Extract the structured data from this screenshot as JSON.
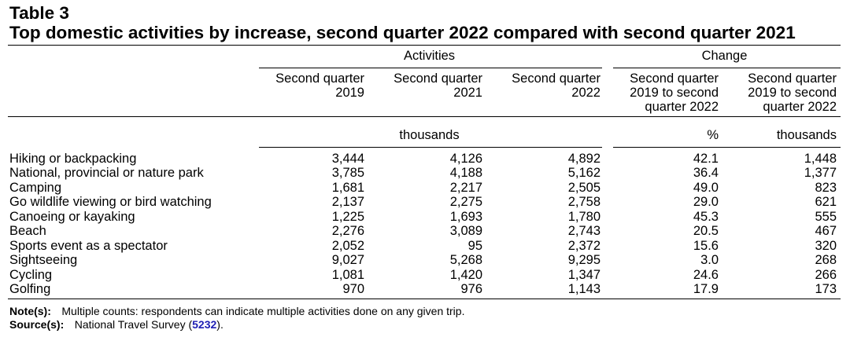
{
  "chart_data": {
    "type": "table",
    "label": "Table 3",
    "title": "Top domestic activities by increase, second quarter 2022 compared with second quarter 2021",
    "column_groups": [
      "Activities",
      "Change"
    ],
    "columns": [
      "Second quarter 2019",
      "Second quarter 2021",
      "Second quarter 2022",
      "Second quarter 2019 to second quarter 2022",
      "Second quarter 2019 to second quarter 2022"
    ],
    "units": [
      "thousands",
      "%",
      "thousands"
    ],
    "rows": [
      {
        "label": "Hiking or backpacking",
        "values": [
          3444,
          4126,
          4892,
          42.1,
          1448
        ]
      },
      {
        "label": "National, provincial or nature park",
        "values": [
          3785,
          4188,
          5162,
          36.4,
          1377
        ]
      },
      {
        "label": "Camping",
        "values": [
          1681,
          2217,
          2505,
          49.0,
          823
        ]
      },
      {
        "label": "Go wildlife viewing or bird watching",
        "values": [
          2137,
          2275,
          2758,
          29.0,
          621
        ]
      },
      {
        "label": "Canoeing or kayaking",
        "values": [
          1225,
          1693,
          1780,
          45.3,
          555
        ]
      },
      {
        "label": "Beach",
        "values": [
          2276,
          3089,
          2743,
          20.5,
          467
        ]
      },
      {
        "label": "Sports event as a spectator",
        "values": [
          2052,
          95,
          2372,
          15.6,
          320
        ]
      },
      {
        "label": "Sightseeing",
        "values": [
          9027,
          5268,
          9295,
          3.0,
          268
        ]
      },
      {
        "label": "Cycling",
        "values": [
          1081,
          1420,
          1347,
          24.6,
          266
        ]
      },
      {
        "label": "Golfing",
        "values": [
          970,
          976,
          1143,
          17.9,
          173
        ]
      }
    ]
  },
  "notes": {
    "note_label": "Note(s):",
    "note_text": "Multiple counts: respondents can indicate multiple activities done on any given trip.",
    "source_label": "Source(s):",
    "source_prefix": "National Travel Survey (",
    "source_link": "5232",
    "source_suffix": ")."
  },
  "colors": {
    "link": "#1f1fb4"
  }
}
